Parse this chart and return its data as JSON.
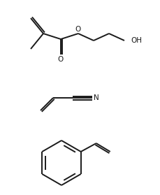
{
  "background_color": "#ffffff",
  "line_color": "#1a1a1a",
  "line_width": 1.4,
  "figsize": [
    2.3,
    2.79
  ],
  "dpi": 100,
  "label_O_ester": "O",
  "label_O_carbonyl": "O",
  "label_OH": "OH",
  "label_N": "N",
  "fontsize": 7.5
}
